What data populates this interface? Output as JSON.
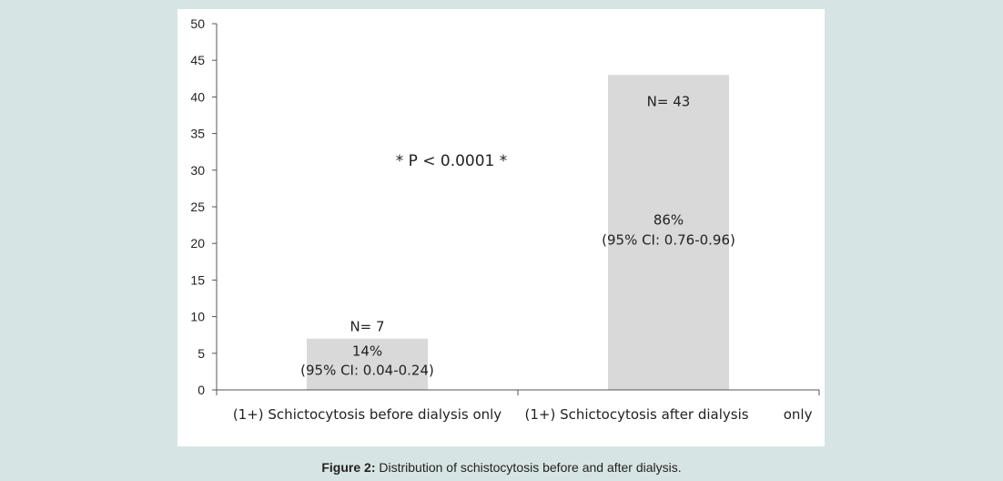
{
  "chart_data": {
    "type": "bar",
    "categories": [
      "(1+) Schictocytosis before dialysis only",
      "(1+) Schictocytosis after dialysis        only"
    ],
    "values": [
      7,
      43
    ],
    "bar_labels": [
      [
        "N= 7",
        "14%",
        "(95% CI: 0.04-0.24)"
      ],
      [
        "N= 43",
        "86%",
        "(95% CI: 0.76-0.96)"
      ]
    ],
    "annotation": "* P < 0.0001 *",
    "ylim": [
      0,
      50
    ],
    "yticks": [
      0,
      5,
      10,
      15,
      20,
      25,
      30,
      35,
      40,
      45,
      50
    ],
    "bar_color": "#d9d9d9",
    "grid": false,
    "title": "",
    "xlabel": "",
    "ylabel": ""
  },
  "caption": {
    "prefix": "Figure 2:",
    "text": " Distribution of schistocytosis before and after dialysis."
  }
}
